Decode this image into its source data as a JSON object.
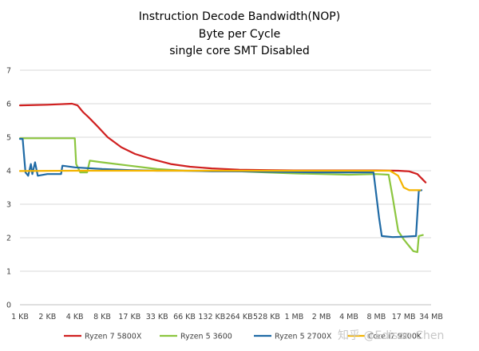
{
  "chart_data": {
    "type": "line",
    "title_lines": [
      "Instruction Decode Bandwidth(NOP)",
      "Byte per Cycle",
      "single core SMT Disabled"
    ],
    "xlabel": "",
    "ylabel": "",
    "categories": [
      "1 KB",
      "2 KB",
      "4 KB",
      "8 KB",
      "17 KB",
      "33 KB",
      "66 KB",
      "132 KB",
      "264 KB",
      "528 KB",
      "1 MB",
      "2 MB",
      "4 MB",
      "8 MB",
      "17 MB",
      "34 MB"
    ],
    "ylim": [
      0,
      7
    ],
    "yticks": [
      0,
      1,
      2,
      3,
      4,
      5,
      6,
      7
    ],
    "grid": true,
    "legend_position": "bottom",
    "series": [
      {
        "name": "Ryzen 7 5800X",
        "color": "#d02020",
        "points": [
          [
            0,
            5.95
          ],
          [
            1.0,
            5.97
          ],
          [
            1.9,
            6.0
          ],
          [
            2.1,
            5.95
          ],
          [
            2.3,
            5.75
          ],
          [
            2.5,
            5.6
          ],
          [
            2.8,
            5.35
          ],
          [
            3.2,
            5.0
          ],
          [
            3.7,
            4.7
          ],
          [
            4.2,
            4.5
          ],
          [
            4.8,
            4.35
          ],
          [
            5.5,
            4.2
          ],
          [
            6.2,
            4.12
          ],
          [
            7.0,
            4.07
          ],
          [
            8.0,
            4.03
          ],
          [
            9.0,
            4.02
          ],
          [
            10.0,
            4.01
          ],
          [
            11.0,
            4.01
          ],
          [
            12.0,
            4.01
          ],
          [
            13.0,
            4.01
          ],
          [
            13.8,
            4.0
          ],
          [
            14.2,
            3.98
          ],
          [
            14.5,
            3.9
          ],
          [
            14.8,
            3.65
          ]
        ]
      },
      {
        "name": "Ryzen 5 3600",
        "color": "#8cc63f",
        "points": [
          [
            0,
            4.97
          ],
          [
            0.8,
            4.97
          ],
          [
            1.5,
            4.97
          ],
          [
            2.0,
            4.97
          ],
          [
            2.05,
            4.2
          ],
          [
            2.2,
            3.95
          ],
          [
            2.45,
            3.95
          ],
          [
            2.55,
            4.3
          ],
          [
            3.0,
            4.25
          ],
          [
            4.0,
            4.15
          ],
          [
            5.0,
            4.05
          ],
          [
            6.0,
            4.0
          ],
          [
            7.0,
            4.0
          ],
          [
            8.0,
            3.98
          ],
          [
            9.0,
            3.95
          ],
          [
            10.0,
            3.92
          ],
          [
            11.0,
            3.9
          ],
          [
            12.0,
            3.88
          ],
          [
            13.0,
            3.9
          ],
          [
            13.45,
            3.88
          ],
          [
            13.6,
            3.2
          ],
          [
            13.8,
            2.2
          ],
          [
            14.0,
            1.95
          ],
          [
            14.2,
            1.75
          ],
          [
            14.35,
            1.6
          ],
          [
            14.5,
            1.57
          ],
          [
            14.55,
            2.05
          ],
          [
            14.7,
            2.08
          ]
        ]
      },
      {
        "name": "Ryzen 5 2700X",
        "color": "#1f6aa5",
        "points": [
          [
            0,
            4.95
          ],
          [
            0.1,
            4.95
          ],
          [
            0.2,
            3.95
          ],
          [
            0.3,
            3.85
          ],
          [
            0.4,
            4.2
          ],
          [
            0.45,
            3.9
          ],
          [
            0.55,
            4.25
          ],
          [
            0.65,
            3.85
          ],
          [
            1.0,
            3.9
          ],
          [
            1.5,
            3.9
          ],
          [
            1.55,
            4.15
          ],
          [
            2.0,
            4.1
          ],
          [
            3.0,
            4.05
          ],
          [
            4.0,
            4.02
          ],
          [
            5.0,
            4.0
          ],
          [
            6.0,
            4.0
          ],
          [
            7.0,
            3.98
          ],
          [
            8.0,
            3.98
          ],
          [
            9.0,
            3.97
          ],
          [
            10.0,
            3.96
          ],
          [
            11.0,
            3.95
          ],
          [
            12.0,
            3.95
          ],
          [
            12.9,
            3.95
          ],
          [
            13.1,
            2.6
          ],
          [
            13.2,
            2.05
          ],
          [
            13.6,
            2.02
          ],
          [
            14.0,
            2.03
          ],
          [
            14.45,
            2.05
          ],
          [
            14.55,
            3.4
          ],
          [
            14.65,
            3.42
          ]
        ]
      },
      {
        "name": "Core i7 9900K",
        "color": "#f4b400",
        "points": [
          [
            0,
            3.99
          ],
          [
            2.0,
            4.0
          ],
          [
            4.0,
            4.0
          ],
          [
            6.0,
            4.0
          ],
          [
            8.0,
            4.0
          ],
          [
            10.0,
            4.0
          ],
          [
            12.0,
            4.0
          ],
          [
            13.0,
            4.0
          ],
          [
            13.5,
            4.0
          ],
          [
            13.8,
            3.85
          ],
          [
            14.0,
            3.5
          ],
          [
            14.2,
            3.42
          ],
          [
            14.6,
            3.42
          ]
        ]
      }
    ]
  },
  "watermark": {
    "text": "知乎 @Edison Chen"
  }
}
